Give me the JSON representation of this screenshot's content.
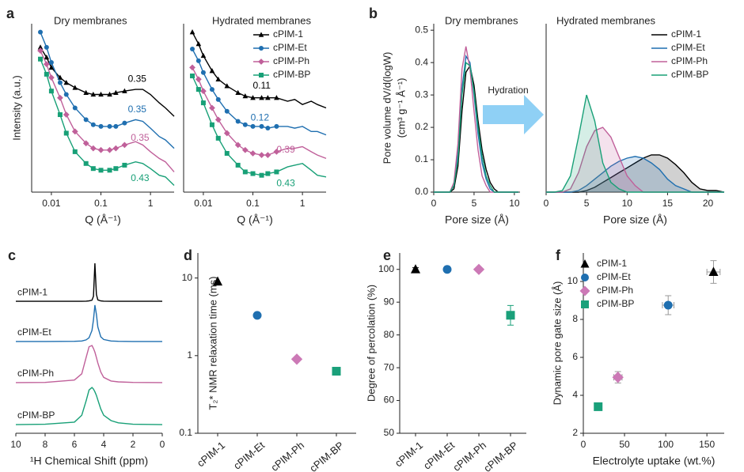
{
  "chart_data": [
    {
      "type": "line",
      "panel": "a",
      "title": "Dry membranes",
      "ylabel": [
        "Intensity (a.u.)"
      ],
      "xlabel": "Q (Å⁻¹)",
      "xlog": true,
      "xlim": [
        0.004,
        3
      ],
      "xticks": [
        0.01,
        0.1,
        1
      ],
      "ylim": [
        0,
        10
      ],
      "x": [
        0.006,
        0.008,
        0.01,
        0.015,
        0.02,
        0.03,
        0.05,
        0.07,
        0.1,
        0.15,
        0.2,
        0.3,
        0.5,
        0.7,
        1,
        1.5,
        2,
        3
      ],
      "series": [
        {
          "name": "cPIM-1",
          "color": "#000000",
          "marker": "triangle",
          "values": [
            8.6,
            8.0,
            7.4,
            6.8,
            6.5,
            6.2,
            5.9,
            5.8,
            5.8,
            5.8,
            5.9,
            6.0,
            6.1,
            6.1,
            5.8,
            5.3,
            5.0,
            4.5
          ]
        },
        {
          "name": "cPIM-Et",
          "color": "#1f6fb0",
          "marker": "circle",
          "values": [
            9.5,
            8.6,
            7.7,
            6.5,
            5.8,
            5.0,
            4.3,
            4.0,
            3.9,
            3.9,
            3.9,
            4.1,
            4.3,
            4.2,
            3.8,
            3.3,
            3.1,
            2.6
          ]
        },
        {
          "name": "cPIM-Ph",
          "color": "#c0609a",
          "marker": "diamond",
          "values": [
            8.4,
            7.6,
            6.8,
            5.6,
            4.6,
            3.6,
            2.9,
            2.6,
            2.5,
            2.5,
            2.6,
            2.8,
            3.0,
            2.8,
            2.4,
            2.0,
            1.8,
            1.2
          ]
        },
        {
          "name": "cPIM-BP",
          "color": "#18a077",
          "marker": "square",
          "values": [
            7.9,
            7.0,
            6.0,
            4.6,
            3.5,
            2.4,
            1.7,
            1.4,
            1.3,
            1.3,
            1.4,
            1.6,
            1.8,
            1.7,
            1.4,
            1.0,
            0.9,
            0.4
          ]
        }
      ],
      "annotations": [
        {
          "text": "0.35",
          "x": 0.35,
          "y": 6.7,
          "color": "#000000"
        },
        {
          "text": "0.35",
          "x": 0.35,
          "y": 4.9,
          "color": "#1f6fb0"
        },
        {
          "text": "0.35",
          "x": 0.4,
          "y": 3.2,
          "color": "#c0609a"
        },
        {
          "text": "0.43",
          "x": 0.4,
          "y": 0.8,
          "color": "#18a077"
        }
      ]
    },
    {
      "type": "line",
      "title": "Hydrated membranes",
      "xlabel": "Q (Å⁻¹)",
      "legend": "upper right",
      "xlog": true,
      "xlim": [
        0.004,
        3
      ],
      "xticks": [
        0.01,
        0.1,
        1
      ],
      "ylim": [
        0,
        10
      ],
      "x": [
        0.006,
        0.008,
        0.01,
        0.015,
        0.02,
        0.03,
        0.05,
        0.07,
        0.1,
        0.15,
        0.2,
        0.3,
        0.5,
        0.7,
        1,
        1.5,
        2,
        3
      ],
      "series": [
        {
          "name": "cPIM-1",
          "color": "#000000",
          "marker": "triangle",
          "values": [
            9.5,
            8.8,
            8.1,
            7.2,
            6.7,
            6.3,
            5.9,
            5.7,
            5.6,
            5.6,
            5.6,
            5.6,
            5.4,
            5.5,
            5.2,
            5.4,
            5.2,
            5.0
          ]
        },
        {
          "name": "cPIM-Et",
          "color": "#1f6fb0",
          "marker": "circle",
          "values": [
            8.5,
            7.8,
            7.1,
            6.1,
            5.5,
            4.8,
            4.2,
            4.0,
            3.9,
            3.9,
            3.8,
            3.9,
            3.9,
            3.8,
            3.9,
            3.6,
            3.6,
            3.4
          ]
        },
        {
          "name": "cPIM-Ph",
          "color": "#c0609a",
          "marker": "diamond",
          "values": [
            7.4,
            6.7,
            6.0,
            5.0,
            4.3,
            3.5,
            2.8,
            2.5,
            2.3,
            2.2,
            2.2,
            2.4,
            2.6,
            2.6,
            2.7,
            2.4,
            2.2,
            2.0
          ]
        },
        {
          "name": "cPIM-BP",
          "color": "#18a077",
          "marker": "square",
          "values": [
            6.9,
            6.1,
            5.3,
            4.0,
            3.2,
            2.3,
            1.6,
            1.2,
            1.1,
            1.0,
            1.1,
            1.2,
            1.5,
            1.6,
            1.7,
            1.3,
            1.0,
            0.9
          ]
        }
      ],
      "annotations": [
        {
          "text": "0.11",
          "x": 0.1,
          "y": 6.3,
          "color": "#000000"
        },
        {
          "text": "0.12",
          "x": 0.09,
          "y": 4.4,
          "color": "#1f6fb0"
        },
        {
          "text": "0.39",
          "x": 0.3,
          "y": 2.5,
          "color": "#c0609a"
        },
        {
          "text": "0.43",
          "x": 0.3,
          "y": 0.5,
          "color": "#18a077"
        }
      ]
    },
    {
      "type": "line",
      "panel": "b",
      "title": "Dry membranes",
      "ylabel": [
        "Pore volume dV/d(logW)",
        "(cm³ g⁻¹ Å⁻¹)"
      ],
      "xlabel": "Pore size (Å)",
      "xlim": [
        0,
        10.7
      ],
      "xticks": [
        0,
        5,
        10
      ],
      "ylim": [
        0,
        0.52
      ],
      "yticks": [
        {
          "value": 0,
          "label": "0.0"
        },
        0.1,
        0.2,
        0.3,
        0.4,
        0.5
      ],
      "x": [
        0,
        2,
        2.5,
        3,
        3.5,
        4,
        4.5,
        5,
        5.5,
        6,
        6.5,
        7,
        7.5,
        8,
        9,
        10.5
      ],
      "series": [
        {
          "name": "cPIM-1",
          "color": "#000000",
          "values": [
            0,
            0,
            0.01,
            0.08,
            0.25,
            0.37,
            0.39,
            0.33,
            0.22,
            0.13,
            0.07,
            0.03,
            0.01,
            0,
            0,
            0
          ]
        },
        {
          "name": "cPIM-Et",
          "color": "#1f6fb0",
          "values": [
            0,
            0,
            0.02,
            0.12,
            0.32,
            0.42,
            0.4,
            0.3,
            0.18,
            0.09,
            0.04,
            0.01,
            0,
            0,
            0,
            0
          ]
        },
        {
          "name": "cPIM-Ph",
          "color": "#c0609a",
          "values": [
            0,
            0,
            0.03,
            0.15,
            0.38,
            0.45,
            0.38,
            0.25,
            0.13,
            0.05,
            0.02,
            0,
            0,
            0,
            0,
            0
          ]
        },
        {
          "name": "cPIM-BP",
          "color": "#18a077",
          "values": [
            0,
            0,
            0.02,
            0.1,
            0.3,
            0.4,
            0.39,
            0.31,
            0.2,
            0.11,
            0.05,
            0.02,
            0,
            0,
            0,
            0
          ]
        }
      ]
    },
    {
      "type": "area",
      "title": "Hydrated membranes",
      "xlabel": "Pore size (Å)",
      "legend": "upper right",
      "annotation": "Hydration",
      "xlim": [
        0,
        22
      ],
      "xticks": [
        0,
        5,
        10,
        15,
        20
      ],
      "ylim": [
        0,
        0.52
      ],
      "x": [
        0,
        1,
        2,
        3,
        4,
        5,
        6,
        7,
        8,
        9,
        10,
        11,
        12,
        13,
        14,
        15,
        16,
        17,
        18,
        19,
        20,
        21,
        22
      ],
      "series": [
        {
          "name": "cPIM-1",
          "color": "#000000",
          "values": [
            0,
            0,
            0,
            0,
            0,
            0.005,
            0.015,
            0.03,
            0.045,
            0.06,
            0.075,
            0.09,
            0.105,
            0.115,
            0.115,
            0.105,
            0.085,
            0.06,
            0.03,
            0.01,
            0.005,
            0.005,
            0
          ]
        },
        {
          "name": "cPIM-Et",
          "color": "#1f6fb0",
          "values": [
            0,
            0,
            0,
            0,
            0.005,
            0.02,
            0.04,
            0.06,
            0.08,
            0.095,
            0.105,
            0.11,
            0.105,
            0.09,
            0.07,
            0.04,
            0.02,
            0.01,
            0,
            0,
            0,
            0,
            0
          ]
        },
        {
          "name": "cPIM-Ph",
          "color": "#c0609a",
          "values": [
            0,
            0,
            0,
            0.01,
            0.06,
            0.14,
            0.19,
            0.2,
            0.17,
            0.11,
            0.05,
            0.02,
            0,
            0,
            0,
            0,
            0,
            0,
            0,
            0,
            0,
            0,
            0
          ]
        },
        {
          "name": "cPIM-BP",
          "color": "#18a077",
          "values": [
            0,
            0,
            0.005,
            0.05,
            0.17,
            0.3,
            0.22,
            0.09,
            0.03,
            0.01,
            0,
            0,
            0,
            0,
            0,
            0,
            0,
            0,
            0,
            0,
            0,
            0,
            0
          ]
        }
      ]
    },
    {
      "type": "line",
      "panel": "c",
      "xlabel": "¹H Chemical Shift (ppm)",
      "series_labels": true,
      "xlim": [
        10,
        0
      ],
      "xticks": [
        10,
        8,
        6,
        4,
        2,
        0
      ],
      "ylim": [
        0,
        10
      ],
      "x": [
        10,
        8,
        6,
        5.5,
        5.2,
        5,
        4.8,
        4.7,
        4.6,
        4.5,
        4.4,
        4.2,
        4,
        3.5,
        3,
        2,
        0
      ],
      "series": [
        {
          "name": "cPIM-1",
          "color": "#000000",
          "values": [
            7.32,
            7.32,
            7.32,
            7.32,
            7.33,
            7.34,
            7.38,
            7.6,
            9.43,
            7.7,
            7.4,
            7.34,
            7.33,
            7.32,
            7.32,
            7.32,
            7.32
          ]
        },
        {
          "name": "cPIM-Et",
          "color": "#1f6fb0",
          "values": [
            5.09,
            5.09,
            5.1,
            5.12,
            5.18,
            5.3,
            5.7,
            6.3,
            7.11,
            6.6,
            5.9,
            5.35,
            5.2,
            5.12,
            5.1,
            5.09,
            5.09
          ]
        },
        {
          "name": "cPIM-Ph",
          "color": "#c0609a",
          "values": [
            2.81,
            2.82,
            2.95,
            3.3,
            4.2,
            4.8,
            4.87,
            4.7,
            4.5,
            4.2,
            3.9,
            3.4,
            3.1,
            2.9,
            2.85,
            2.82,
            2.81
          ]
        },
        {
          "name": "cPIM-BP",
          "color": "#18a077",
          "values": [
            0.48,
            0.5,
            0.62,
            1.0,
            1.8,
            2.4,
            2.54,
            2.45,
            2.3,
            2.1,
            1.85,
            1.35,
            1.0,
            0.7,
            0.58,
            0.5,
            0.48
          ]
        }
      ]
    },
    {
      "type": "scatter",
      "panel": "d",
      "ylabel": [
        "T₂* NMR relaxation time (ms)"
      ],
      "ylog": true,
      "categories": [
        "cPIM-1",
        "cPIM-Et",
        "cPIM-Ph",
        "cPIM-BP"
      ],
      "values": [
        9.0,
        3.3,
        0.9,
        0.63
      ],
      "colors": [
        "#000000",
        "#1f6fb0",
        "#cc79b6",
        "#1aa07a"
      ],
      "markers": [
        "triangle",
        "circle",
        "diamond",
        "square"
      ],
      "ylim": [
        0.1,
        21
      ],
      "yticks": [
        0.1,
        1,
        10
      ]
    },
    {
      "type": "scatter",
      "panel": "e",
      "ylabel": [
        "Degree of percolation (%)"
      ],
      "categories": [
        "cPIM-1",
        "cPIM-Et",
        "cPIM-Ph",
        "cPIM-BP"
      ],
      "values": [
        100,
        100,
        100,
        86
      ],
      "errors": [
        0.5,
        0.8,
        0.5,
        3
      ],
      "colors": [
        "#000000",
        "#1f6fb0",
        "#cc79b6",
        "#1aa07a"
      ],
      "markers": [
        "triangle",
        "circle",
        "diamond",
        "square"
      ],
      "ylim": [
        50,
        105
      ],
      "yticks": [
        50,
        60,
        70,
        80,
        90,
        100
      ]
    },
    {
      "type": "scatter",
      "panel": "f",
      "ylabel": [
        "Dynamic pore gate size (Å)"
      ],
      "xlabel": "Electrolyte uptake (wt.%)",
      "legend": "upper left",
      "xlim": [
        0,
        171
      ],
      "xticks": [
        0,
        50,
        100,
        150
      ],
      "ylim": [
        2,
        11.5
      ],
      "yticks": [
        2,
        4,
        6,
        8,
        10
      ],
      "series": [
        {
          "name": "cPIM-1",
          "color": "#000000",
          "marker": "triangle",
          "x": [
            158
          ],
          "values": [
            10.5
          ],
          "x_errors": [
            8
          ],
          "errors": [
            0.6
          ]
        },
        {
          "name": "cPIM-Et",
          "color": "#1f6fb0",
          "marker": "circle",
          "x": [
            103
          ],
          "values": [
            8.75
          ],
          "x_errors": [
            7
          ],
          "errors": [
            0.5
          ]
        },
        {
          "name": "cPIM-Ph",
          "color": "#cc79b6",
          "marker": "diamond",
          "x": [
            42
          ],
          "values": [
            4.95
          ],
          "x_errors": [
            5
          ],
          "errors": [
            0.3
          ]
        },
        {
          "name": "cPIM-BP",
          "color": "#1aa07a",
          "marker": "square",
          "x": [
            18
          ],
          "values": [
            3.4
          ],
          "x_errors": [
            3
          ],
          "errors": [
            0.15
          ]
        }
      ]
    }
  ]
}
